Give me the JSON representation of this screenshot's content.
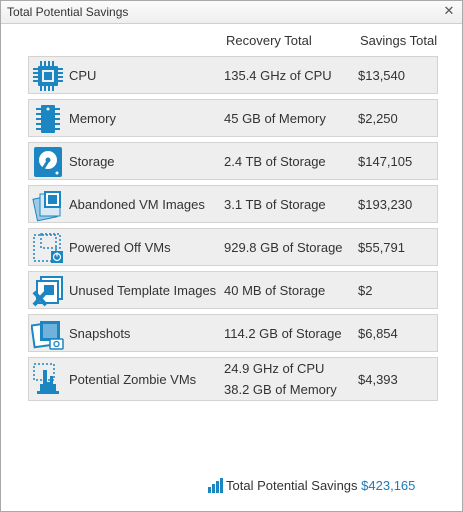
{
  "window": {
    "title": "Total Potential Savings",
    "close_glyph": "✕"
  },
  "headers": {
    "recovery": "Recovery Total",
    "savings": "Savings Total"
  },
  "accent_color": "#1c86c2",
  "rows": [
    {
      "icon": "cpu-icon",
      "name": "CPU",
      "recovery": "135.4 GHz of CPU",
      "savings": "$13,540"
    },
    {
      "icon": "memory-icon",
      "name": "Memory",
      "recovery": "45 GB of Memory",
      "savings": "$2,250"
    },
    {
      "icon": "storage-icon",
      "name": "Storage",
      "recovery": "2.4 TB of Storage",
      "savings": "$147,105"
    },
    {
      "icon": "abandoned-vm-images-icon",
      "name": "Abandoned VM Images",
      "recovery": "3.1 TB of Storage",
      "savings": "$193,230"
    },
    {
      "icon": "powered-off-vms-icon",
      "name": "Powered Off VMs",
      "recovery": "929.8 GB of Storage",
      "savings": "$55,791"
    },
    {
      "icon": "unused-template-images-icon",
      "name": "Unused Template Images",
      "recovery": "40 MB of Storage",
      "savings": "$2"
    },
    {
      "icon": "snapshots-icon",
      "name": "Snapshots",
      "recovery": "114.2 GB of Storage",
      "savings": "$6,854"
    },
    {
      "icon": "potential-zombie-vms-icon",
      "name": "Potential Zombie VMs",
      "recovery_lines": [
        "24.9 GHz of CPU",
        "38.2 GB of Memory"
      ],
      "savings": "$4,393"
    }
  ],
  "total": {
    "label": "Total Potential Savings",
    "amount": "$423,165"
  }
}
